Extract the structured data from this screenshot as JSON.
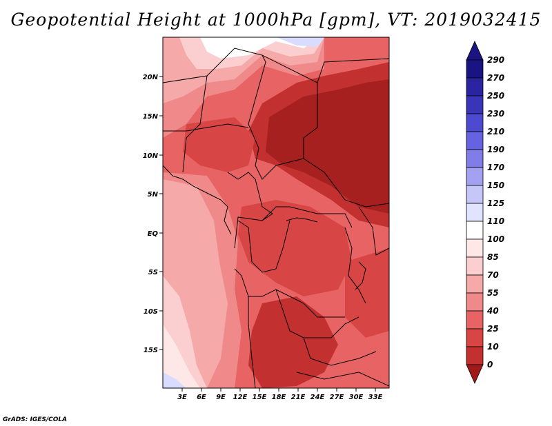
{
  "title": "Geopotential Height at 1000hPa [gpm], VT: 2019032415",
  "footer": "GrADS: IGES/COLA",
  "map": {
    "lat_labels": [
      "20N",
      "15N",
      "10N",
      "5N",
      "EQ",
      "5S",
      "10S",
      "15S"
    ],
    "lon_labels": [
      "3E",
      "6E",
      "9E",
      "12E",
      "15E",
      "18E",
      "21E",
      "24E",
      "27E",
      "30E",
      "33E"
    ]
  },
  "colorbar": {
    "levels": [
      "290",
      "270",
      "250",
      "230",
      "210",
      "190",
      "170",
      "150",
      "125",
      "110",
      "100",
      "85",
      "70",
      "55",
      "40",
      "25",
      "10",
      "0"
    ],
    "colors": {
      "top_arrow": "#1a1482",
      "bottom_arrow": "#a01a1a"
    }
  },
  "colors": {
    "darkest_red": "#a5201f",
    "dark_red": "#c23030",
    "red": "#d84545",
    "medium_red": "#e86464",
    "light_red": "#f08a8a",
    "pink": "#f5a9a9",
    "light_pink": "#fbcfcf",
    "very_light_pink": "#fde7e7",
    "white": "#ffffff",
    "light_blue": "#d9dcff"
  }
}
